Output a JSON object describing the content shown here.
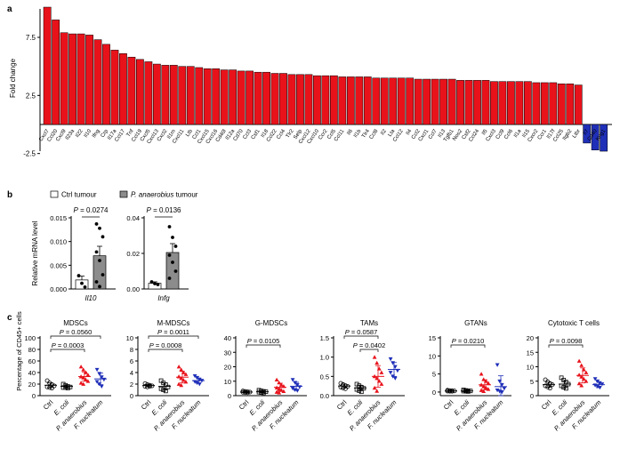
{
  "panels": {
    "a": {
      "label": "a"
    },
    "b": {
      "label": "b"
    },
    "c": {
      "label": "c"
    }
  },
  "chart_data": [
    {
      "id": "a",
      "type": "bar",
      "ylabel": "Fold change",
      "yticks": [
        7.5,
        2.5,
        -2.5
      ],
      "ylim": [
        -3.2,
        11
      ],
      "categories": [
        "Cxcl7",
        "Ccl20",
        "Cxcl9",
        "Il23a",
        "Il22",
        "Il10",
        "Ifng",
        "Crp",
        "Il17a",
        "Ccl17",
        "Tnf",
        "Ccl19",
        "Cxcl5",
        "Cxcl13",
        "Cxcl2",
        "Il1rn",
        "Cxcl11",
        "Ltb",
        "Ccl1",
        "Cxcl15",
        "Cxcl16",
        "Cd40l",
        "Il12a",
        "Cd70",
        "Ccl3",
        "Csf1",
        "Il18",
        "Ccl22",
        "Ccl4",
        "Tlr2",
        "Selp",
        "Cxcl12",
        "Cxcl10",
        "Ccr2",
        "Ccl5",
        "Ccl11",
        "Il6",
        "Il1b",
        "Tlr4",
        "Ccl8",
        "Il2",
        "Lta",
        "Ccl12",
        "Il4",
        "Ccl2",
        "Cxcl1",
        "Ccl7",
        "Il13",
        "Tgfb1",
        "Nos2",
        "Csf2",
        "Ccl24",
        "Il5",
        "Cxcl3",
        "Ccl9",
        "Ccl6",
        "Il1a",
        "Il15",
        "Cxcr2",
        "Ccr1",
        "Il17f",
        "Ccl25",
        "Itgb2",
        "Ltbr",
        "Il7",
        "Cd40",
        "Kng1"
      ],
      "display_labels": [
        "Cxcl7",
        "Ccl20",
        "Cxcl9",
        "Il23a",
        "Il22",
        "Il10",
        "Ifng",
        "Crp",
        "Il17a",
        "Ccl17",
        "Tnf",
        "Ccl19",
        "Cxcl5",
        "Cxcl13",
        "Cxcl2",
        "Il1rn",
        "Cxcl11",
        "Ltb",
        "Ccl1",
        "Cxcl15",
        "Cxcl16",
        "Cd40l",
        "Il12a",
        "Cd70",
        "Ccl3",
        "Csf1",
        "Il18",
        "Ccl22",
        "Ccl4",
        "Tlr2",
        "Selp",
        "Cxcl12",
        "Cxcl10",
        "Ccr2",
        "Ccl5",
        "Ccl11",
        "Il6",
        "Il1b",
        "Tlr4",
        "Ccl8",
        "Il2",
        "Lta",
        "Ccl12",
        "Il4",
        "Ccl2",
        "Cxcl1",
        "Ccl7",
        "Il13",
        "Tgfb1",
        "Nos2",
        "Csf2",
        "Ccl24",
        "Il5",
        "Cxcl3",
        "Ccl9",
        "Ccl6",
        "Il1a",
        "Il15",
        "Cxcr2",
        "Ccr1",
        "Il17f",
        "Ccl25",
        "Itgb2",
        "Ltbr",
        "Il7",
        "Cd40",
        "Kng1"
      ],
      "values": [
        10.1,
        9.0,
        7.9,
        7.8,
        7.8,
        7.7,
        7.3,
        6.9,
        6.4,
        6.1,
        5.8,
        5.6,
        5.4,
        5.2,
        5.1,
        5.1,
        5.0,
        5.0,
        4.9,
        4.8,
        4.8,
        4.7,
        4.7,
        4.6,
        4.6,
        4.5,
        4.5,
        4.4,
        4.4,
        4.3,
        4.3,
        4.3,
        4.2,
        4.2,
        4.2,
        4.1,
        4.1,
        4.1,
        4.1,
        4.0,
        4.0,
        4.0,
        4.0,
        4.0,
        3.9,
        3.9,
        3.9,
        3.9,
        3.9,
        3.8,
        3.8,
        3.8,
        3.8,
        3.7,
        3.7,
        3.7,
        3.7,
        3.7,
        3.6,
        3.6,
        3.6,
        3.5,
        3.5,
        3.4,
        -1.6,
        -2.2,
        -2.3
      ],
      "colors": {
        "up": "#e8121b",
        "down": "#1f2fb8"
      }
    },
    {
      "id": "b",
      "type": "bar",
      "legend": [
        {
          "name": "Ctrl tumour",
          "color": "#ffffff"
        },
        {
          "name": "P. anaerobius tumour",
          "color": "#8c8c8c",
          "italic_part": "P. anaerobius"
        }
      ],
      "ylabel": "Relative mRNA level",
      "plots": [
        {
          "gene": "Il10",
          "pvalue": "P = 0.0274",
          "ylim": [
            0,
            0.015
          ],
          "yticks": [
            "0.000",
            "0.005",
            "0.010",
            "0.015"
          ],
          "bars": [
            {
              "group": "Ctrl tumour",
              "mean": 0.0019,
              "sem": 0.0008,
              "points": [
                0.0028,
                0.0012,
                0.0004
              ]
            },
            {
              "group": "P. anaerobius tumour",
              "mean": 0.007,
              "sem": 0.002,
              "points": [
                0.0137,
                0.0128,
                0.011,
                0.0078,
                0.006,
                0.003,
                0.0015,
                0.0005
              ]
            }
          ]
        },
        {
          "gene": "Infg",
          "pvalue": "P = 0.0136",
          "ylim": [
            0,
            0.04
          ],
          "yticks": [
            "0.00",
            "0.02",
            "0.04"
          ],
          "bars": [
            {
              "group": "Ctrl tumour",
              "mean": 0.0032,
              "sem": 0.0008,
              "points": [
                0.004,
                0.003,
                0.0025
              ]
            },
            {
              "group": "P. anaerobius tumour",
              "mean": 0.0205,
              "sem": 0.005,
              "points": [
                0.035,
                0.029,
                0.024,
                0.019,
                0.015,
                0.01,
                0.006
              ]
            }
          ]
        }
      ]
    },
    {
      "id": "c",
      "type": "scatter",
      "ylabel": "Percentage of CD45+ cells",
      "groups": [
        "Ctrl",
        "E. coli",
        "P. anaerobius",
        "F. nucleatum"
      ],
      "group_colors": [
        "#000000",
        "#000000",
        "#e8121b",
        "#1f2fb8"
      ],
      "group_markers": [
        "circle",
        "square",
        "triangle",
        "triangle-down"
      ],
      "plots": [
        {
          "title": "MDSCs",
          "ylim": [
            0,
            100
          ],
          "yticks": [
            0,
            20,
            40,
            60,
            80,
            100
          ],
          "brackets": [
            {
              "from": 0,
              "to": 3,
              "label": "P = 0.0560"
            },
            {
              "from": 0,
              "to": 2,
              "label": "P = 0.0003"
            }
          ],
          "series": [
            {
              "points": [
                26,
                22,
                19,
                17,
                15,
                14,
                13
              ],
              "mean": 18,
              "sd": 4
            },
            {
              "points": [
                20,
                18,
                16,
                15,
                14,
                14,
                13
              ],
              "mean": 16,
              "sd": 2.5
            },
            {
              "points": [
                50,
                45,
                40,
                36,
                33,
                31,
                28,
                25,
                22,
                20
              ],
              "mean": 33,
              "sd": 8
            },
            {
              "points": [
                45,
                38,
                32,
                28,
                24,
                20,
                16
              ],
              "mean": 29,
              "sd": 10
            }
          ]
        },
        {
          "title": "M-MDSCs",
          "ylim": [
            0,
            10
          ],
          "yticks": [
            0,
            2,
            4,
            6,
            8,
            10
          ],
          "brackets": [
            {
              "from": 0,
              "to": 3,
              "label": "P = 0.0011"
            },
            {
              "from": 0,
              "to": 2,
              "label": "P = 0.0008"
            }
          ],
          "series": [
            {
              "points": [
                2.1,
                1.9,
                1.8,
                1.7,
                1.6,
                1.5,
                1.6
              ],
              "mean": 1.75,
              "sd": 0.2
            },
            {
              "points": [
                2.6,
                2.2,
                1.9,
                1.5,
                1.2,
                1.0,
                0.8
              ],
              "mean": 1.6,
              "sd": 0.6
            },
            {
              "points": [
                5.0,
                4.5,
                4.0,
                3.7,
                3.3,
                3.0,
                2.7,
                2.4,
                2.0,
                1.8
              ],
              "mean": 3.2,
              "sd": 1.0
            },
            {
              "points": [
                3.4,
                3.1,
                2.8,
                2.6,
                2.4,
                2.2,
                2.0
              ],
              "mean": 2.6,
              "sd": 0.45
            }
          ]
        },
        {
          "title": "G-MDSCs",
          "ylim": [
            0,
            40
          ],
          "yticks": [
            0,
            10,
            20,
            30,
            40
          ],
          "brackets": [
            {
              "from": 0,
              "to": 2,
              "label": "P = 0.0105"
            }
          ],
          "series": [
            {
              "points": [
                3.2,
                2.9,
                2.7,
                2.5,
                2.3,
                2.1,
                2.0
              ],
              "mean": 2.5,
              "sd": 0.4
            },
            {
              "points": [
                3.8,
                3.3,
                3.0,
                2.7,
                2.4,
                2.1,
                1.9
              ],
              "mean": 2.7,
              "sd": 0.6
            },
            {
              "points": [
                11,
                9,
                7.5,
                6.5,
                5.5,
                4.5,
                3.8,
                3.0,
                2.5,
                2.0
              ],
              "mean": 5.8,
              "sd": 2.8
            },
            {
              "points": [
                11,
                9,
                7.5,
                6,
                5,
                4,
                3.5
              ],
              "mean": 6.5,
              "sd": 2.8
            }
          ]
        },
        {
          "title": "TAMs",
          "ylim": [
            0,
            1.5
          ],
          "yticks": [
            "0.0",
            "0.5",
            "1.0",
            "1.5"
          ],
          "brackets": [
            {
              "from": 0,
              "to": 2,
              "label": "P = 0.0587"
            },
            {
              "from": 1,
              "to": 2,
              "label": "P = 0.0402"
            }
          ],
          "series": [
            {
              "points": [
                0.32,
                0.29,
                0.26,
                0.24,
                0.22,
                0.2,
                0.18
              ],
              "mean": 0.25,
              "sd": 0.05
            },
            {
              "points": [
                0.3,
                0.26,
                0.22,
                0.19,
                0.16,
                0.13,
                0.1
              ],
              "mean": 0.2,
              "sd": 0.07
            },
            {
              "points": [
                1.0,
                0.85,
                0.7,
                0.6,
                0.5,
                0.45,
                0.38,
                0.3,
                0.2,
                0.12
              ],
              "mean": 0.5,
              "sd": 0.28
            },
            {
              "points": [
                0.95,
                0.85,
                0.75,
                0.65,
                0.6,
                0.5,
                0.45
              ],
              "mean": 0.68,
              "sd": 0.18
            }
          ]
        },
        {
          "title": "GTANs",
          "ylim": [
            -1,
            15
          ],
          "yticks": [
            0,
            5,
            10,
            15
          ],
          "brackets": [
            {
              "from": 0,
              "to": 2,
              "label": "P = 0.0210"
            }
          ],
          "series": [
            {
              "points": [
                0.5,
                0.4,
                0.35,
                0.3,
                0.25,
                0.2,
                0.2
              ],
              "mean": 0.3,
              "sd": 0.1
            },
            {
              "points": [
                0.6,
                0.45,
                0.35,
                0.3,
                0.25,
                0.2,
                0.15
              ],
              "mean": 0.3,
              "sd": 0.15
            },
            {
              "points": [
                5.0,
                3.5,
                3.0,
                2.5,
                2.0,
                1.5,
                1.2,
                0.8,
                0.5,
                0.2
              ],
              "mean": 2.0,
              "sd": 1.4
            },
            {
              "points": [
                7.5,
                3.0,
                2.0,
                1.0,
                0.5,
                0.2,
                0.0
              ],
              "mean": 1.5,
              "sd": 3.0
            }
          ]
        },
        {
          "title": "Cytotoxic T cells",
          "ylim": [
            0,
            20
          ],
          "yticks": [
            0,
            5,
            10,
            15,
            20
          ],
          "brackets": [
            {
              "from": 0,
              "to": 2,
              "label": "P = 0.0098"
            }
          ],
          "series": [
            {
              "points": [
                5.5,
                4.8,
                4.2,
                3.8,
                3.4,
                3.0,
                2.6
              ],
              "mean": 3.8,
              "sd": 0.9
            },
            {
              "points": [
                6.2,
                5.4,
                4.7,
                4.0,
                3.4,
                2.9,
                2.5
              ],
              "mean": 4.0,
              "sd": 1.2
            },
            {
              "points": [
                12.0,
                10.5,
                9.0,
                8.0,
                7.2,
                6.5,
                5.8,
                5.0,
                4.2,
                3.5
              ],
              "mean": 7.0,
              "sd": 2.6
            },
            {
              "points": [
                5.8,
                5.0,
                4.4,
                4.0,
                3.6,
                3.2,
                2.8
              ],
              "mean": 3.8,
              "sd": 1.0
            }
          ]
        }
      ]
    }
  ]
}
